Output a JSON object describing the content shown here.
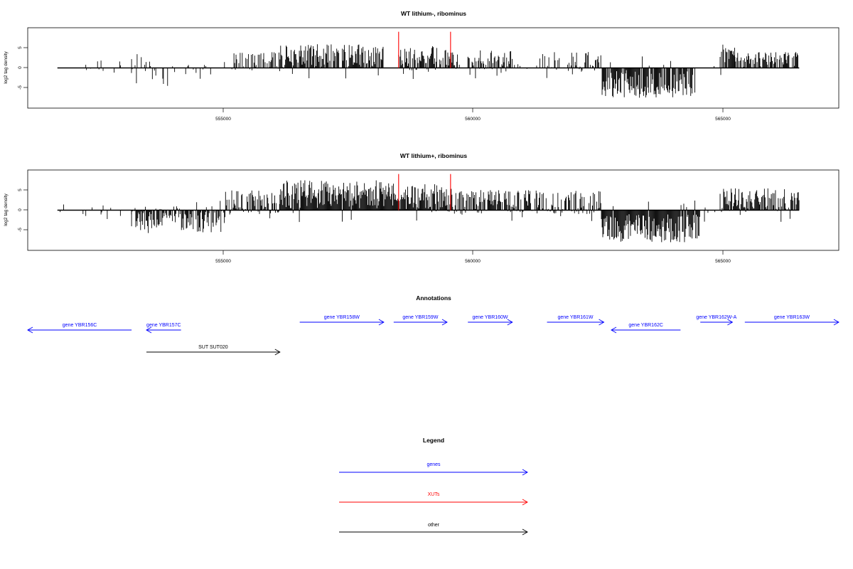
{
  "chart_data": [
    {
      "type": "bar",
      "title": "WT lithium-, ribominus",
      "ylabel": "log2 tag density",
      "xlim": [
        551200,
        567600
      ],
      "ylim": [
        -10,
        10
      ],
      "xticks": [
        555000,
        560000,
        565000
      ],
      "xtick_labels": [
        "555000",
        "560000",
        "565000"
      ],
      "yticks": [
        -5,
        0,
        5
      ],
      "ytick_labels": [
        "-5",
        "0",
        "5"
      ],
      "baseline_range": [
        551800,
        566800
      ],
      "profile": [
        {
          "start": 551800,
          "end": 553300,
          "density": 0.08,
          "mean": 0.0,
          "amp": 2.0
        },
        {
          "start": 553300,
          "end": 554100,
          "density": 0.3,
          "mean": -0.5,
          "amp": 4.0
        },
        {
          "start": 554100,
          "end": 555300,
          "density": 0.12,
          "mean": -0.5,
          "amp": 2.5
        },
        {
          "start": 555300,
          "end": 556300,
          "density": 0.5,
          "mean": 1.5,
          "amp": 2.5
        },
        {
          "start": 556300,
          "end": 558400,
          "density": 0.9,
          "mean": 3.0,
          "amp": 3.0
        },
        {
          "start": 558400,
          "end": 558700,
          "density": 0.1,
          "mean": 0.5,
          "amp": 1.0
        },
        {
          "start": 558700,
          "end": 559900,
          "density": 0.9,
          "mean": 2.5,
          "amp": 3.0
        },
        {
          "start": 559900,
          "end": 560100,
          "density": 0.1,
          "mean": 0.5,
          "amp": 1.0
        },
        {
          "start": 560100,
          "end": 561000,
          "density": 0.7,
          "mean": 2.0,
          "amp": 2.5
        },
        {
          "start": 561000,
          "end": 561500,
          "density": 0.1,
          "mean": 0.5,
          "amp": 1.0
        },
        {
          "start": 561500,
          "end": 562800,
          "density": 0.5,
          "mean": 1.5,
          "amp": 2.5
        },
        {
          "start": 562800,
          "end": 564700,
          "density": 0.9,
          "mean": -4.0,
          "amp": 3.5
        },
        {
          "start": 564700,
          "end": 565200,
          "density": 0.1,
          "mean": 0.3,
          "amp": 1.0
        },
        {
          "start": 565200,
          "end": 565500,
          "density": 0.8,
          "mean": 3.5,
          "amp": 2.5
        },
        {
          "start": 565500,
          "end": 566800,
          "density": 0.7,
          "mean": 2.0,
          "amp": 2.0
        }
      ],
      "highlights": [
        {
          "x": 558700,
          "y": 9.0,
          "color": "#ff0000"
        },
        {
          "x": 559750,
          "y": 9.0,
          "color": "#ff0000"
        }
      ]
    },
    {
      "type": "bar",
      "title": "WT lithium+, ribominus",
      "ylabel": "log2 tag density",
      "xlim": [
        551200,
        567600
      ],
      "ylim": [
        -10,
        10
      ],
      "xticks": [
        555000,
        560000,
        565000
      ],
      "xtick_labels": [
        "555000",
        "560000",
        "565000"
      ],
      "yticks": [
        -5,
        0,
        5
      ],
      "ytick_labels": [
        "-5",
        "0",
        "5"
      ],
      "baseline_range": [
        551800,
        566800
      ],
      "profile": [
        {
          "start": 551800,
          "end": 553300,
          "density": 0.1,
          "mean": -0.5,
          "amp": 2.0
        },
        {
          "start": 553300,
          "end": 555200,
          "density": 0.85,
          "mean": -2.5,
          "amp": 3.5
        },
        {
          "start": 555200,
          "end": 556300,
          "density": 0.85,
          "mean": 2.0,
          "amp": 3.0
        },
        {
          "start": 556300,
          "end": 558700,
          "density": 1.0,
          "mean": 4.0,
          "amp": 3.5
        },
        {
          "start": 558700,
          "end": 559800,
          "density": 1.0,
          "mean": 3.0,
          "amp": 3.5
        },
        {
          "start": 559800,
          "end": 561500,
          "density": 0.85,
          "mean": 2.0,
          "amp": 3.0
        },
        {
          "start": 561500,
          "end": 562800,
          "density": 0.75,
          "mean": 2.0,
          "amp": 3.0
        },
        {
          "start": 562800,
          "end": 564800,
          "density": 1.0,
          "mean": -4.5,
          "amp": 3.5
        },
        {
          "start": 564800,
          "end": 565200,
          "density": 0.15,
          "mean": 0.3,
          "amp": 1.0
        },
        {
          "start": 565200,
          "end": 566800,
          "density": 0.9,
          "mean": 2.5,
          "amp": 3.0
        }
      ],
      "highlights": [
        {
          "x": 558700,
          "y": 9.0,
          "color": "#ff0000"
        },
        {
          "x": 559750,
          "y": 9.0,
          "color": "#ff0000"
        }
      ]
    }
  ],
  "annotations": {
    "title": "Annotations",
    "colors": {
      "genes": "#0000ff",
      "xuts": "#ff0000",
      "other": "#000000"
    },
    "features": [
      {
        "label": "gene YBR156C",
        "start": 551200,
        "end": 553300,
        "strand": "-",
        "row": 1,
        "kind": "genes"
      },
      {
        "label": "gene YBR157C",
        "start": 553600,
        "end": 554300,
        "strand": "-",
        "row": 1,
        "kind": "genes"
      },
      {
        "label": "gene YBR158W",
        "start": 556700,
        "end": 558400,
        "strand": "+",
        "row": 0,
        "kind": "genes"
      },
      {
        "label": "gene YBR159W",
        "start": 558600,
        "end": 559680,
        "strand": "+",
        "row": 0,
        "kind": "genes"
      },
      {
        "label": "gene YBR160W",
        "start": 560100,
        "end": 561000,
        "strand": "+",
        "row": 0,
        "kind": "genes"
      },
      {
        "label": "gene YBR161W",
        "start": 561700,
        "end": 562850,
        "strand": "+",
        "row": 0,
        "kind": "genes"
      },
      {
        "label": "gene YBR162C",
        "start": 563000,
        "end": 564400,
        "strand": "-",
        "row": 1,
        "kind": "genes"
      },
      {
        "label": "gene YBR162W-A",
        "start": 564800,
        "end": 565450,
        "strand": "+",
        "row": 0,
        "kind": "genes"
      },
      {
        "label": "gene YBR163W",
        "start": 565700,
        "end": 567600,
        "strand": "+",
        "row": 0,
        "kind": "genes"
      },
      {
        "label": "SUT SUT020",
        "start": 553600,
        "end": 556300,
        "strand": "+",
        "row": 2,
        "kind": "other"
      }
    ]
  },
  "legend": {
    "title": "Legend",
    "items": [
      {
        "label": "genes",
        "color": "#0000ff"
      },
      {
        "label": "XUTs",
        "color": "#ff0000"
      },
      {
        "label": "other",
        "color": "#000000"
      }
    ]
  }
}
